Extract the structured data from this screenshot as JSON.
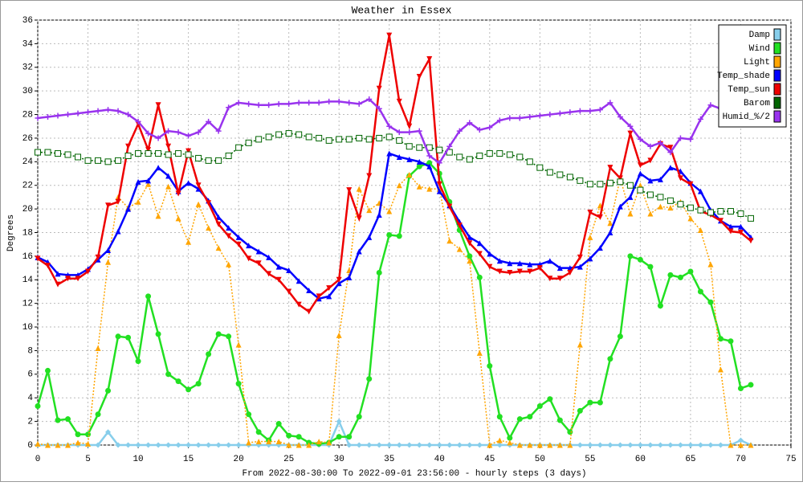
{
  "chart_data": {
    "type": "line",
    "title": "Weather in Essex",
    "x_label": "From 2022-08-30:00 To 2022-09-01 23:56:00 - hourly steps (3 days)",
    "y_label": "Degrees",
    "xlim": [
      0,
      75
    ],
    "ylim": [
      0,
      36
    ],
    "xticks": [
      0,
      5,
      10,
      15,
      20,
      25,
      30,
      35,
      40,
      45,
      50,
      55,
      60,
      65,
      70,
      75
    ],
    "yticks": [
      0,
      2,
      4,
      6,
      8,
      10,
      12,
      14,
      16,
      18,
      20,
      22,
      24,
      26,
      28,
      30,
      32,
      34,
      36
    ],
    "grid": true,
    "legend": "upper right",
    "x": [
      0,
      1,
      2,
      3,
      4,
      5,
      6,
      7,
      8,
      9,
      10,
      11,
      12,
      13,
      14,
      15,
      16,
      17,
      18,
      19,
      20,
      21,
      22,
      23,
      24,
      25,
      26,
      27,
      28,
      29,
      30,
      31,
      32,
      33,
      34,
      35,
      36,
      37,
      38,
      39,
      40,
      41,
      42,
      43,
      44,
      45,
      46,
      47,
      48,
      49,
      50,
      51,
      52,
      53,
      54,
      55,
      56,
      57,
      58,
      59,
      60,
      61,
      62,
      63,
      64,
      65,
      66,
      67,
      68,
      69,
      70,
      71
    ],
    "series": [
      {
        "name": "Damp",
        "color": "#87ceeb",
        "marker": "diamond",
        "dash": false,
        "values": [
          0,
          0,
          0,
          0,
          0,
          0,
          0,
          1.1,
          0,
          0,
          0,
          0,
          0,
          0,
          0,
          0,
          0,
          0,
          0,
          0,
          0,
          0,
          0,
          0,
          0,
          0,
          0,
          0,
          0,
          0,
          2.0,
          0,
          0,
          0,
          0,
          0,
          0,
          0,
          0,
          0,
          0,
          0,
          0,
          0,
          0,
          0,
          0,
          0,
          0,
          0,
          0,
          0,
          0,
          0,
          0,
          0,
          0,
          0,
          0,
          0,
          0,
          0,
          0,
          0,
          0,
          0,
          0,
          0,
          0,
          0,
          0.4,
          0
        ]
      },
      {
        "name": "Wind",
        "color": "#22e022",
        "marker": "circle",
        "dash": false,
        "values": [
          3.3,
          6.3,
          2.1,
          2.2,
          0.9,
          0.9,
          2.6,
          4.6,
          9.2,
          9.1,
          7.1,
          12.6,
          9.4,
          6.0,
          5.4,
          4.7,
          5.2,
          7.7,
          9.4,
          9.2,
          5.2,
          2.6,
          1.1,
          0.4,
          1.8,
          0.8,
          0.7,
          0.2,
          0.1,
          0.2,
          0.7,
          0.7,
          2.4,
          5.6,
          14.6,
          17.8,
          17.7,
          22.8,
          23.6,
          23.9,
          23.0,
          20.6,
          18.2,
          16.0,
          14.2,
          6.7,
          2.4,
          0.6,
          2.2,
          2.4,
          3.3,
          3.9,
          2.1,
          1.1,
          2.9,
          3.6,
          3.6,
          7.3,
          9.2,
          16.0,
          15.7,
          15.1,
          11.8,
          14.4,
          14.2,
          14.7,
          13.0,
          12.1,
          9.0,
          8.8,
          4.8,
          5.1
        ]
      },
      {
        "name": "Light",
        "color": "#ffa500",
        "marker": "triangle",
        "dash": true,
        "values": [
          0.1,
          0,
          0,
          0,
          0.2,
          0.1,
          8.2,
          15.5,
          21.0,
          20.1,
          20.6,
          22.1,
          19.4,
          21.9,
          19.2,
          17.2,
          20.4,
          18.4,
          16.7,
          15.3,
          8.5,
          0.2,
          0.3,
          0.3,
          0.3,
          0,
          0,
          0,
          0.3,
          0.2,
          9.3,
          14.8,
          21.7,
          19.9,
          20.5,
          19.8,
          22.0,
          22.9,
          21.9,
          21.7,
          21.7,
          17.3,
          16.6,
          15.6,
          7.8,
          0,
          0.4,
          0.2,
          0,
          0,
          0,
          0,
          0,
          0,
          8.5,
          17.6,
          20.3,
          18.8,
          22.6,
          19.6,
          22.0,
          19.6,
          20.2,
          20.1,
          20.6,
          19.2,
          18.2,
          15.3,
          6.4,
          0,
          0,
          0
        ]
      },
      {
        "name": "Temp_shade",
        "color": "#0000ff",
        "marker": "triangle",
        "dash": false,
        "values": [
          15.9,
          15.5,
          14.5,
          14.4,
          14.4,
          14.9,
          15.7,
          16.5,
          18.1,
          20.0,
          22.3,
          22.4,
          23.5,
          22.8,
          21.5,
          22.2,
          21.7,
          20.7,
          19.3,
          18.4,
          17.6,
          16.9,
          16.4,
          15.9,
          15.1,
          14.8,
          13.9,
          13.1,
          12.4,
          12.6,
          13.7,
          14.2,
          16.4,
          17.6,
          19.5,
          24.7,
          24.4,
          24.2,
          24.0,
          23.6,
          21.5,
          20.3,
          18.9,
          17.6,
          17.1,
          16.2,
          15.6,
          15.4,
          15.4,
          15.3,
          15.3,
          15.6,
          15.0,
          15.0,
          15.1,
          15.8,
          16.7,
          18.0,
          20.2,
          21.0,
          23.0,
          22.4,
          22.5,
          23.5,
          23.2,
          22.2,
          21.5,
          19.9,
          19.0,
          18.5,
          18.5,
          17.6
        ]
      },
      {
        "name": "Temp_sun",
        "color": "#ee0000",
        "marker": "triangle-down",
        "dash": false,
        "values": [
          15.8,
          15.2,
          13.6,
          14.1,
          14.1,
          14.7,
          15.9,
          20.3,
          20.6,
          25.3,
          27.2,
          25.0,
          28.8,
          25.3,
          21.3,
          24.9,
          22.0,
          20.5,
          18.7,
          17.7,
          17.0,
          15.8,
          15.4,
          14.5,
          14.0,
          13.0,
          11.9,
          11.3,
          12.6,
          13.3,
          14.0,
          21.6,
          19.2,
          22.8,
          30.2,
          34.7,
          29.1,
          27.0,
          31.2,
          32.7,
          22.1,
          20.2,
          18.6,
          17.1,
          16.2,
          15.1,
          14.7,
          14.6,
          14.7,
          14.7,
          15.0,
          14.1,
          14.1,
          14.6,
          15.9,
          19.7,
          19.3,
          23.5,
          22.6,
          26.4,
          23.7,
          24.1,
          25.5,
          25.2,
          22.6,
          22.1,
          19.8,
          19.5,
          19.0,
          18.1,
          18.0,
          17.3
        ]
      },
      {
        "name": "Barom",
        "color": "#006400",
        "marker": "square",
        "dash": true,
        "values": [
          24.8,
          24.8,
          24.7,
          24.6,
          24.4,
          24.1,
          24.1,
          24.0,
          24.1,
          24.5,
          24.7,
          24.7,
          24.7,
          24.6,
          24.7,
          24.6,
          24.3,
          24.1,
          24.1,
          24.5,
          25.2,
          25.6,
          25.9,
          26.1,
          26.3,
          26.4,
          26.3,
          26.1,
          26.0,
          25.8,
          25.9,
          25.9,
          26.0,
          25.9,
          26.0,
          26.1,
          25.8,
          25.3,
          25.2,
          25.2,
          25.0,
          24.8,
          24.4,
          24.2,
          24.5,
          24.7,
          24.7,
          24.6,
          24.4,
          24.0,
          23.5,
          23.1,
          22.9,
          22.7,
          22.4,
          22.1,
          22.1,
          22.2,
          22.3,
          22.0,
          21.6,
          21.2,
          21.0,
          20.7,
          20.4,
          20.1,
          19.9,
          19.7,
          19.8,
          19.8,
          19.6,
          19.2
        ]
      },
      {
        "name": "Humid_%/2",
        "color": "#9933ee",
        "marker": "plus",
        "dash": false,
        "values": [
          27.7,
          27.8,
          27.9,
          28.0,
          28.1,
          28.2,
          28.3,
          28.4,
          28.3,
          28.0,
          27.4,
          26.4,
          26.0,
          26.6,
          26.5,
          26.2,
          26.5,
          27.4,
          26.6,
          28.6,
          29.0,
          28.9,
          28.8,
          28.8,
          28.9,
          28.9,
          29.0,
          29.0,
          29.0,
          29.1,
          29.1,
          29.0,
          28.9,
          29.3,
          28.5,
          27.0,
          26.5,
          26.5,
          26.6,
          24.5,
          23.9,
          25.3,
          26.6,
          27.3,
          26.7,
          26.9,
          27.5,
          27.7,
          27.7,
          27.8,
          27.9,
          28.0,
          28.1,
          28.2,
          28.3,
          28.3,
          28.4,
          29.0,
          27.8,
          27.0,
          25.9,
          25.3,
          25.6,
          24.8,
          26.0,
          25.9,
          27.6,
          28.8,
          28.5,
          28.5,
          null,
          null
        ]
      }
    ]
  }
}
